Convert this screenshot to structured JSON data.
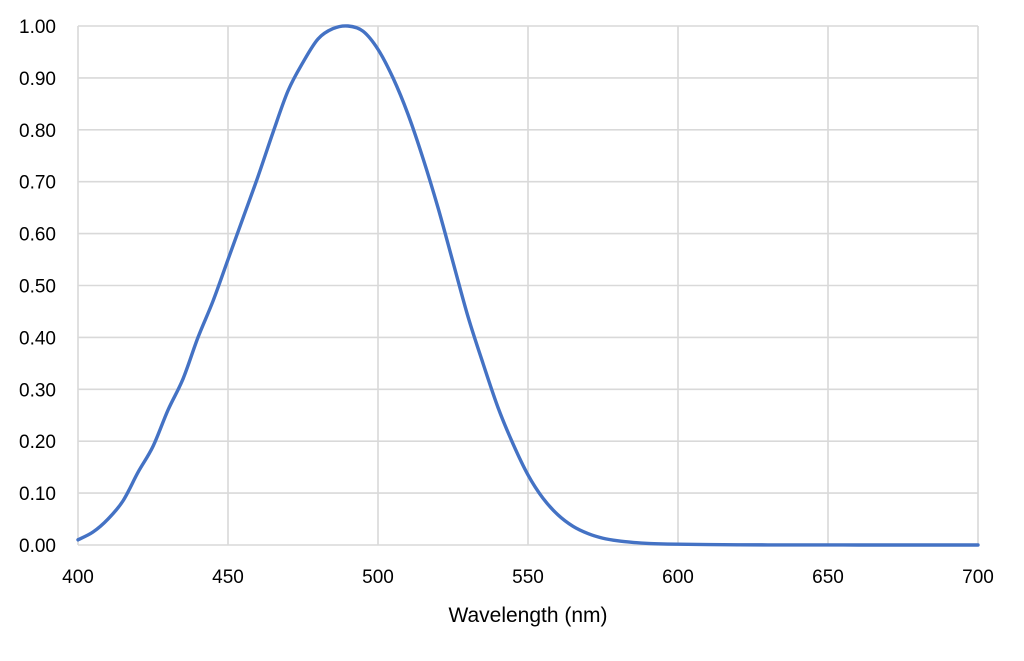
{
  "chart_data": {
    "type": "line",
    "title": "",
    "xlabel": "Wavelength (nm)",
    "ylabel": "",
    "xlim": [
      400,
      700
    ],
    "ylim": [
      0,
      1.0
    ],
    "x_ticks": [
      400,
      450,
      500,
      550,
      600,
      650,
      700
    ],
    "y_ticks": [
      0,
      0.1,
      0.2,
      0.3,
      0.4,
      0.5,
      0.6,
      0.7,
      0.8,
      0.9,
      1.0
    ],
    "y_tick_labels": [
      "0.00",
      "0.10",
      "0.20",
      "0.30",
      "0.40",
      "0.50",
      "0.60",
      "0.70",
      "0.80",
      "0.90",
      "1.00"
    ],
    "x_tick_labels": [
      "400",
      "450",
      "500",
      "550",
      "600",
      "650",
      "700"
    ],
    "grid": true,
    "legend": "none",
    "series": [
      {
        "color": "#4472c4",
        "x": [
          400,
          405,
          410,
          415,
          420,
          425,
          430,
          435,
          440,
          445,
          450,
          455,
          460,
          465,
          470,
          475,
          480,
          485,
          490,
          495,
          500,
          505,
          510,
          515,
          520,
          525,
          530,
          535,
          540,
          545,
          550,
          555,
          560,
          565,
          570,
          575,
          580,
          585,
          590,
          595,
          600,
          610,
          620,
          630,
          640,
          650,
          660,
          670,
          680,
          690,
          700
        ],
        "y": [
          0.01,
          0.025,
          0.05,
          0.085,
          0.14,
          0.19,
          0.26,
          0.32,
          0.4,
          0.47,
          0.55,
          0.63,
          0.71,
          0.795,
          0.875,
          0.93,
          0.975,
          0.995,
          1.0,
          0.99,
          0.955,
          0.9,
          0.83,
          0.745,
          0.65,
          0.545,
          0.44,
          0.35,
          0.265,
          0.195,
          0.135,
          0.09,
          0.058,
          0.036,
          0.022,
          0.013,
          0.008,
          0.005,
          0.003,
          0.002,
          0.0015,
          0.0008,
          0.0004,
          0.0002,
          0.0001,
          0.0001,
          0.0,
          0.0,
          0.0,
          0.0,
          0.0
        ]
      }
    ]
  }
}
